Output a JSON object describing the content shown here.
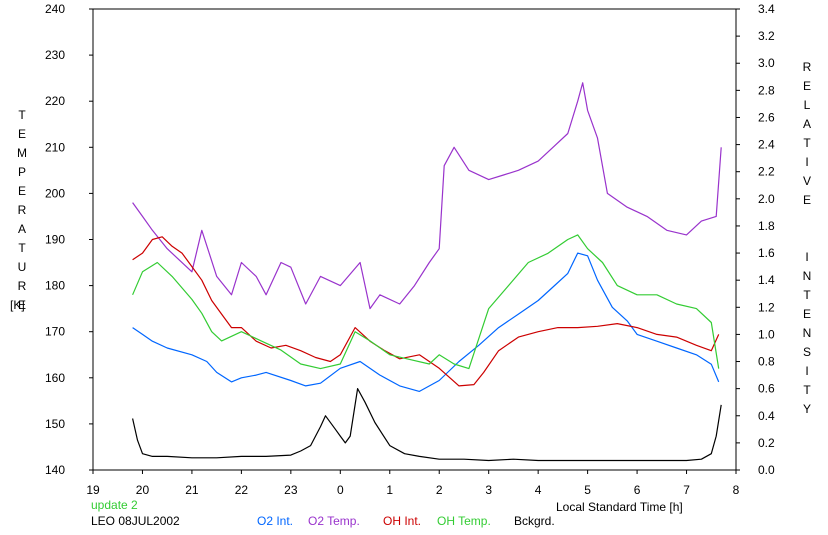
{
  "chart_data": {
    "type": "line",
    "title": "",
    "left_axis": {
      "label": "TEMPERATURE",
      "unit": "[K]",
      "ylim": [
        140,
        240
      ],
      "ticks": [
        140,
        150,
        160,
        170,
        180,
        190,
        200,
        210,
        220,
        230,
        240
      ]
    },
    "right_axis": {
      "label": "RELATIVE INTENSITY",
      "ylim": [
        0.0,
        3.4
      ],
      "ticks": [
        "0.0",
        "0.2",
        "0.4",
        "0.6",
        "0.8",
        "1.0",
        "1.2",
        "1.4",
        "1.6",
        "1.8",
        "2.0",
        "2.2",
        "2.4",
        "2.6",
        "2.8",
        "3.0",
        "3.2",
        "3.4"
      ]
    },
    "x_axis": {
      "label": "Local Standard Time [h]",
      "xlim": [
        19,
        32
      ],
      "ticks": [
        "19",
        "20",
        "21",
        "22",
        "23",
        "0",
        "1",
        "2",
        "3",
        "4",
        "5",
        "6",
        "7",
        "8"
      ]
    },
    "grid": false,
    "series": [
      {
        "name": "O2 Int.",
        "color": "#0066ff",
        "axis": "right",
        "x": [
          19.8,
          20.0,
          20.2,
          20.5,
          21.0,
          21.3,
          21.5,
          21.8,
          22.0,
          22.3,
          22.5,
          23.0,
          23.3,
          23.6,
          24.0,
          24.4,
          24.8,
          25.2,
          25.6,
          26.0,
          26.4,
          26.8,
          27.2,
          27.6,
          28.0,
          28.3,
          28.6,
          28.8,
          29.0,
          29.2,
          29.5,
          29.8,
          30.0,
          30.4,
          30.8,
          31.2,
          31.5,
          31.65
        ],
        "y": [
          1.05,
          1.0,
          0.95,
          0.9,
          0.85,
          0.8,
          0.72,
          0.65,
          0.68,
          0.7,
          0.72,
          0.66,
          0.62,
          0.64,
          0.75,
          0.8,
          0.7,
          0.62,
          0.58,
          0.66,
          0.8,
          0.92,
          1.05,
          1.15,
          1.25,
          1.35,
          1.45,
          1.6,
          1.58,
          1.4,
          1.2,
          1.1,
          1.0,
          0.95,
          0.9,
          0.85,
          0.78,
          0.65
        ]
      },
      {
        "name": "O2 Temp.",
        "color": "#9933cc",
        "axis": "left",
        "x": [
          19.8,
          20.0,
          20.2,
          20.5,
          21.0,
          21.2,
          21.5,
          21.8,
          22.0,
          22.3,
          22.5,
          22.8,
          23.0,
          23.3,
          23.6,
          24.0,
          24.4,
          24.6,
          24.8,
          25.2,
          25.5,
          25.8,
          26.0,
          26.1,
          26.3,
          26.6,
          27.0,
          27.3,
          27.6,
          28.0,
          28.3,
          28.6,
          28.8,
          28.9,
          29.0,
          29.2,
          29.4,
          29.8,
          30.2,
          30.6,
          31.0,
          31.3,
          31.6,
          31.7
        ],
        "y": [
          198,
          195,
          192,
          188,
          183,
          192,
          182,
          178,
          185,
          182,
          178,
          185,
          184,
          176,
          182,
          180,
          185,
          175,
          178,
          176,
          180,
          185,
          188,
          206,
          210,
          205,
          203,
          204,
          205,
          207,
          210,
          213,
          220,
          224,
          218,
          212,
          200,
          197,
          195,
          192,
          191,
          194,
          195,
          210
        ]
      },
      {
        "name": "OH Int.",
        "color": "#cc0000",
        "axis": "right",
        "x": [
          19.8,
          20.0,
          20.2,
          20.4,
          20.6,
          20.8,
          21.0,
          21.2,
          21.4,
          21.6,
          21.8,
          22.0,
          22.3,
          22.6,
          22.9,
          23.2,
          23.5,
          23.8,
          24.0,
          24.3,
          24.6,
          24.9,
          25.2,
          25.6,
          26.0,
          26.4,
          26.7,
          26.9,
          27.2,
          27.6,
          28.0,
          28.4,
          28.8,
          29.2,
          29.6,
          30.0,
          30.4,
          30.8,
          31.2,
          31.5,
          31.65
        ],
        "y": [
          1.55,
          1.6,
          1.7,
          1.72,
          1.65,
          1.6,
          1.5,
          1.4,
          1.25,
          1.15,
          1.05,
          1.05,
          0.95,
          0.9,
          0.92,
          0.88,
          0.83,
          0.8,
          0.85,
          1.05,
          0.95,
          0.88,
          0.82,
          0.85,
          0.75,
          0.62,
          0.63,
          0.72,
          0.88,
          0.98,
          1.02,
          1.05,
          1.05,
          1.06,
          1.08,
          1.05,
          1.0,
          0.98,
          0.92,
          0.88,
          1.0
        ]
      },
      {
        "name": "OH Temp.",
        "color": "#33cc33",
        "axis": "left",
        "x": [
          19.8,
          20.0,
          20.3,
          20.6,
          21.0,
          21.2,
          21.4,
          21.6,
          22.0,
          22.4,
          22.8,
          23.2,
          23.6,
          24.0,
          24.3,
          24.6,
          25.0,
          25.4,
          25.8,
          26.0,
          26.3,
          26.6,
          27.0,
          27.4,
          27.8,
          28.2,
          28.6,
          28.8,
          29.0,
          29.3,
          29.6,
          30.0,
          30.4,
          30.8,
          31.2,
          31.5,
          31.65
        ],
        "y": [
          178,
          183,
          185,
          182,
          177,
          174,
          170,
          168,
          170,
          168,
          166,
          163,
          162,
          163,
          170,
          168,
          165,
          164,
          163,
          165,
          163,
          162,
          175,
          180,
          185,
          187,
          190,
          191,
          188,
          185,
          180,
          178,
          178,
          176,
          175,
          172,
          162
        ]
      },
      {
        "name": "Bckgrd.",
        "color": "#000000",
        "axis": "right",
        "x": [
          19.8,
          19.9,
          20.0,
          20.2,
          20.5,
          21.0,
          21.5,
          22.0,
          22.5,
          23.0,
          23.2,
          23.4,
          23.6,
          23.7,
          23.9,
          24.0,
          24.1,
          24.2,
          24.35,
          24.5,
          24.7,
          25.0,
          25.3,
          25.6,
          26.0,
          26.5,
          27.0,
          27.5,
          28.0,
          28.5,
          29.0,
          29.5,
          30.0,
          30.5,
          31.0,
          31.3,
          31.5,
          31.6,
          31.7
        ],
        "y": [
          0.38,
          0.22,
          0.12,
          0.1,
          0.1,
          0.09,
          0.09,
          0.1,
          0.1,
          0.11,
          0.14,
          0.18,
          0.32,
          0.4,
          0.3,
          0.25,
          0.2,
          0.25,
          0.6,
          0.5,
          0.35,
          0.18,
          0.12,
          0.1,
          0.08,
          0.08,
          0.07,
          0.08,
          0.07,
          0.07,
          0.07,
          0.07,
          0.07,
          0.07,
          0.07,
          0.08,
          0.12,
          0.25,
          0.48
        ]
      }
    ],
    "annotation": "update 2",
    "annotation_color": "#33cc33"
  },
  "footer": {
    "station": "LEO 08JUL2002"
  }
}
